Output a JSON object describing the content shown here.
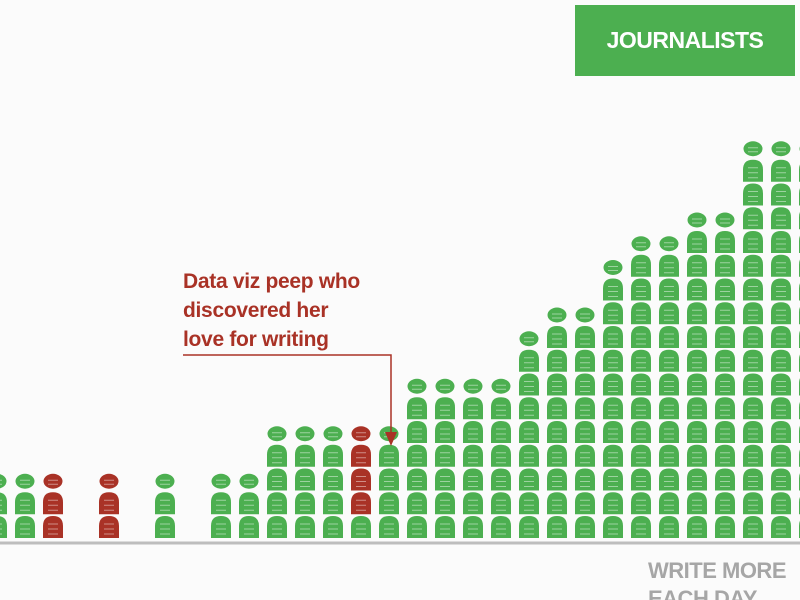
{
  "colors": {
    "journalist": "#4caf50",
    "highlight": "#a93226",
    "axis_line": "#bdbdbd",
    "axis_label": "#a6a6a6",
    "background": "#fbfbfb"
  },
  "legend": {
    "label": "JOURNALISTS"
  },
  "annotation": {
    "lines": [
      "Data viz peep who",
      "discovered her",
      "love for writing"
    ]
  },
  "axis": {
    "xlabel_lines": [
      "WRITE MORE",
      "EACH DAY"
    ]
  },
  "chart_data": {
    "type": "unit-histogram",
    "title": "",
    "xlabel": "WRITE MORE EACH DAY",
    "ylabel": "",
    "series": [
      {
        "name": "JOURNALISTS",
        "color": "#4caf50",
        "counts": [
          2,
          2,
          0,
          0,
          0,
          0,
          2,
          0,
          2,
          2,
          4,
          4,
          4,
          1,
          4,
          6,
          6,
          6,
          6,
          8,
          9,
          9,
          11,
          12,
          12,
          13,
          13,
          16,
          16,
          16,
          18,
          18,
          18
        ]
      },
      {
        "name": "Data viz peep who discovered her love for writing",
        "color": "#a93226",
        "counts": [
          0,
          0,
          2,
          0,
          2,
          0,
          0,
          0,
          0,
          0,
          0,
          0,
          0,
          3,
          0,
          0,
          0,
          0,
          0,
          0,
          0,
          0,
          0,
          0,
          0,
          0,
          0,
          0,
          0,
          0,
          0,
          0,
          0
        ]
      }
    ]
  }
}
